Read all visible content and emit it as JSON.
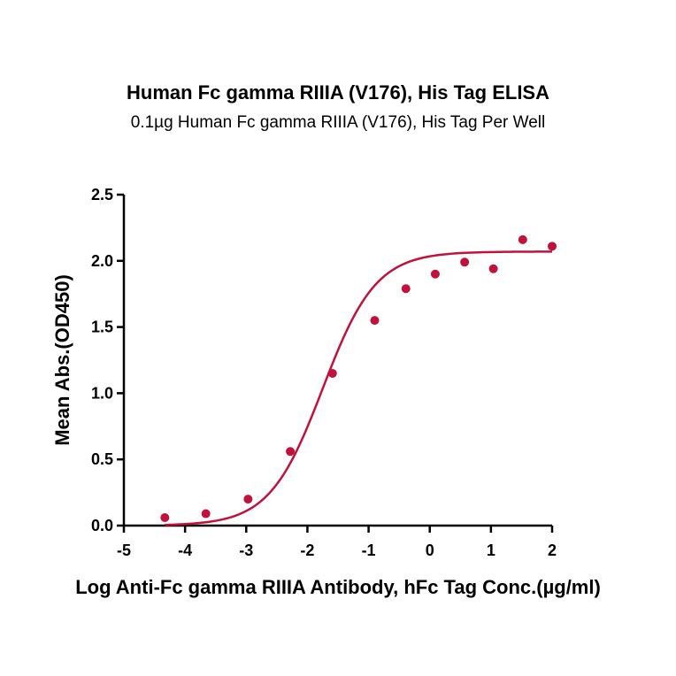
{
  "chart_data": {
    "type": "scatter",
    "title": "Human Fc gamma RIIIA (V176), His Tag ELISA",
    "subtitle": "0.1µg Human Fc gamma RIIIA (V176), His Tag Per Well",
    "xlabel": "Log Anti-Fc gamma RIIIA Antibody, hFc Tag Conc.(µg/ml)",
    "ylabel": "Mean Abs.(OD450)",
    "xlim": [
      -5,
      2
    ],
    "ylim": [
      0,
      2.5
    ],
    "xticks": [
      "-5",
      "-4",
      "-3",
      "-2",
      "-1",
      "0",
      "1",
      "2"
    ],
    "yticks": [
      "0.0",
      "0.5",
      "1.0",
      "1.5",
      "2.0",
      "2.5"
    ],
    "grid": false,
    "color": "#c0123c",
    "series": [
      {
        "points": [
          {
            "x": -4.33,
            "y": 0.06
          },
          {
            "x": -3.66,
            "y": 0.09
          },
          {
            "x": -2.97,
            "y": 0.2
          },
          {
            "x": -2.28,
            "y": 0.56
          },
          {
            "x": -1.59,
            "y": 1.15
          },
          {
            "x": -0.9,
            "y": 1.55
          },
          {
            "x": -0.39,
            "y": 1.79
          },
          {
            "x": 0.09,
            "y": 1.9
          },
          {
            "x": 0.57,
            "y": 1.99
          },
          {
            "x": 1.04,
            "y": 1.94
          },
          {
            "x": 1.52,
            "y": 2.16
          },
          {
            "x": 2.0,
            "y": 2.11
          }
        ],
        "fit": {
          "model": "4PL",
          "bottom": 0.0,
          "top": 2.07,
          "log_ec50": -1.75,
          "hill": 1.0,
          "x_range": [
            -4.33,
            2.0
          ]
        }
      }
    ]
  }
}
